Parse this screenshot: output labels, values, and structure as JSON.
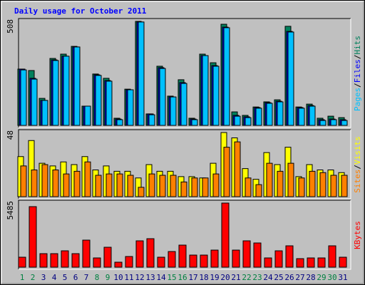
{
  "chart_data": [
    {
      "type": "bar",
      "title": "Daily usage for October 2011",
      "series": [
        {
          "name": "Hits",
          "color": "#00805c",
          "values": [
            275,
            268,
            132,
            327,
            348,
            386,
            94,
            251,
            230,
            35,
            177,
            508,
            56,
            289,
            143,
            223,
            35,
            348,
            306,
            494,
            66,
            49,
            90,
            115,
            125,
            484,
            90,
            104,
            35,
            45,
            38
          ]
        },
        {
          "name": "Files",
          "color": "#0000ff",
          "values": [
            275,
            230,
            122,
            320,
            338,
            383,
            94,
            247,
            219,
            31,
            174,
            505,
            56,
            282,
            139,
            209,
            31,
            341,
            292,
            480,
            49,
            42,
            87,
            111,
            118,
            459,
            87,
            97,
            28,
            31,
            28
          ]
        },
        {
          "name": "Pages",
          "color": "#00c0ff",
          "values": [
            271,
            226,
            122,
            317,
            338,
            383,
            94,
            244,
            216,
            28,
            174,
            505,
            52,
            278,
            139,
            205,
            28,
            341,
            289,
            477,
            45,
            38,
            84,
            108,
            115,
            456,
            84,
            94,
            24,
            28,
            24
          ]
        }
      ],
      "ylim": [
        0,
        508
      ],
      "yticks": [
        508
      ],
      "legend_separator": "/"
    },
    {
      "type": "bar",
      "series": [
        {
          "name": "Visits",
          "color": "#ffff00",
          "values": [
            30,
            42,
            25,
            23,
            26,
            24,
            30,
            20,
            23,
            19,
            19,
            14,
            24,
            19,
            19,
            15,
            15,
            14,
            25,
            48,
            44,
            21,
            13,
            33,
            24,
            37,
            15,
            24,
            20,
            20,
            18
          ]
        },
        {
          "name": "Sites",
          "color": "#ff8000",
          "values": [
            23,
            20,
            24,
            20,
            17,
            19,
            26,
            16,
            17,
            17,
            16,
            7,
            17,
            16,
            16,
            11,
            14,
            14,
            17,
            37,
            41,
            14,
            9,
            25,
            19,
            25,
            14,
            19,
            18,
            16,
            16
          ]
        }
      ],
      "ylim": [
        0,
        48
      ],
      "yticks": [
        48
      ],
      "legend_separator": "/"
    },
    {
      "type": "bar",
      "series": [
        {
          "name": "KBytes",
          "color": "#ff0000",
          "values": [
            853,
            5180,
            1158,
            1158,
            1401,
            1158,
            2316,
            792,
            1706,
            427,
            914,
            2255,
            2438,
            853,
            1340,
            1889,
            1036,
            1036,
            1462,
            5485,
            1462,
            2255,
            2072,
            792,
            1401,
            1828,
            731,
            792,
            792,
            1828,
            853
          ]
        }
      ],
      "ylim": [
        0,
        5485
      ],
      "yticks": [
        5485
      ],
      "categories": [
        "1",
        "2",
        "3",
        "4",
        "5",
        "6",
        "7",
        "8",
        "9",
        "10",
        "11",
        "12",
        "13",
        "14",
        "15",
        "16",
        "17",
        "18",
        "19",
        "20",
        "21",
        "22",
        "23",
        "24",
        "25",
        "26",
        "27",
        "28",
        "29",
        "30",
        "31"
      ],
      "category_colors": [
        "#008040",
        "#008040",
        "#000080",
        "#000080",
        "#000080",
        "#000080",
        "#000080",
        "#008040",
        "#008040",
        "#000080",
        "#000080",
        "#000080",
        "#000080",
        "#000080",
        "#008040",
        "#008040",
        "#000080",
        "#000080",
        "#000080",
        "#000080",
        "#000080",
        "#008040",
        "#008040",
        "#000080",
        "#000080",
        "#000080",
        "#000080",
        "#000080",
        "#008040",
        "#008040",
        "#000080"
      ]
    }
  ]
}
